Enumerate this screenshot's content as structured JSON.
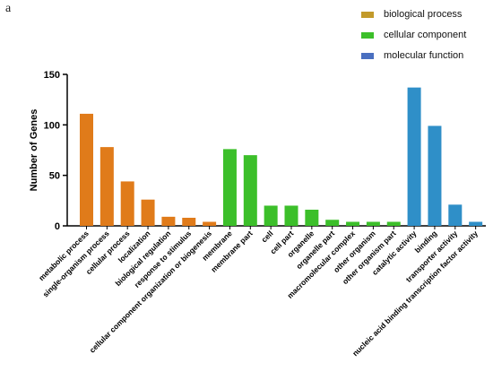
{
  "panel_label": "a",
  "chart_data": {
    "type": "bar",
    "ylabel": "Number of Genes",
    "ylim": [
      0,
      150
    ],
    "yticks": [
      0,
      50,
      100,
      150
    ],
    "grid": false,
    "legend_position": "top-right",
    "series": [
      {
        "name": "biological process",
        "color": "#e07b1a",
        "legend_color": "#c29a2b",
        "categories": [
          "metabolic process",
          "single-organism process",
          "cellular process",
          "localization",
          "biological regulation",
          "response to stimulus",
          "cellular component organization or biogenesis"
        ],
        "values": [
          111,
          78,
          44,
          26,
          9,
          8,
          4
        ]
      },
      {
        "name": "cellular component",
        "color": "#3cbf2a",
        "legend_color": "#3cbf2a",
        "categories": [
          "membrane",
          "membrane part",
          "cell",
          "cell part",
          "organelle",
          "organelle part",
          "macromolecular complex",
          "other organism",
          "other organism part"
        ],
        "values": [
          76,
          70,
          20,
          20,
          16,
          6,
          4,
          4,
          4
        ]
      },
      {
        "name": "molecular function",
        "color": "#2f8fc8",
        "legend_color": "#4a6fc0",
        "categories": [
          "catalytic activity",
          "binding",
          "transporter activity",
          "nucleic acid binding transcription factor activity"
        ],
        "values": [
          137,
          99,
          21,
          4
        ]
      }
    ]
  }
}
